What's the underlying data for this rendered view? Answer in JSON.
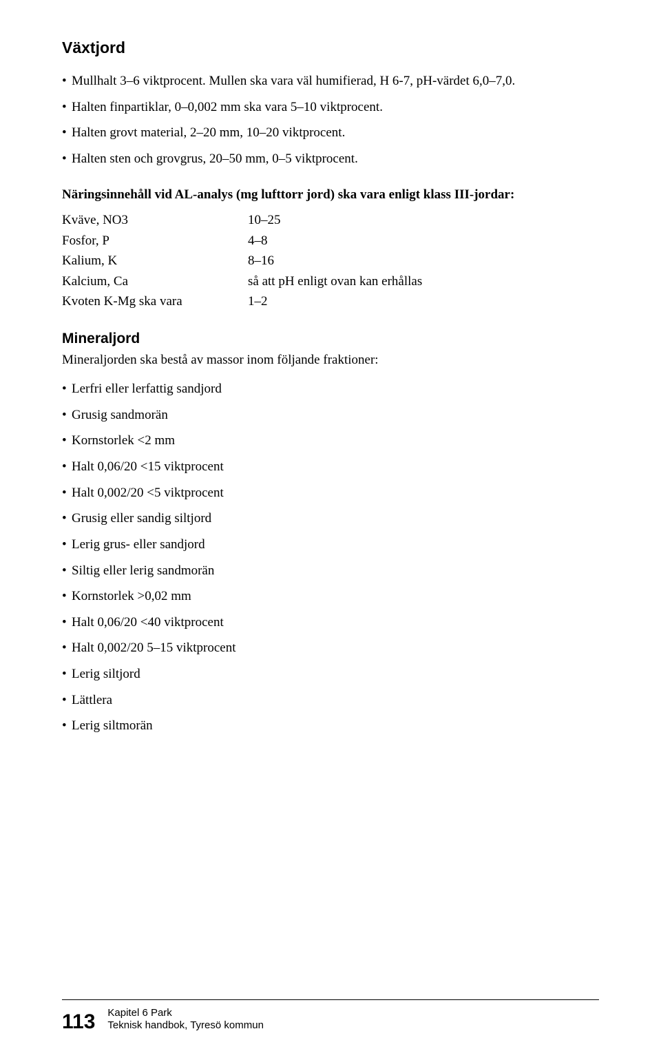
{
  "section1": {
    "heading": "Växtjord",
    "bullets": [
      "Mullhalt 3–6 viktprocent. Mullen ska vara väl humifierad, H 6-7, pH-värdet 6,0–7,0.",
      "Halten finpartiklar, 0–0,002 mm ska vara 5–10 viktprocent.",
      "Halten grovt material, 2–20 mm, 10–20 viktprocent.",
      "Halten sten och grovgrus, 20–50 mm, 0–5 viktprocent."
    ]
  },
  "nutrients": {
    "intro": "Näringsinnehåll vid AL-analys (mg lufttorr jord) ska vara enligt klass III-jordar:",
    "rows": [
      {
        "label": "Kväve, NO3",
        "value": "10–25"
      },
      {
        "label": "Fosfor, P",
        "value": "4–8"
      },
      {
        "label": "Kalium, K",
        "value": "8–16"
      },
      {
        "label": "Kalcium, Ca",
        "value": "så att pH enligt ovan kan erhållas"
      },
      {
        "label": "Kvoten K-Mg ska vara",
        "value": "1–2"
      }
    ]
  },
  "section2": {
    "heading": "Mineraljord",
    "intro": "Mineraljorden ska bestå av massor inom följande fraktioner:",
    "bullets": [
      "Lerfri eller lerfattig sandjord",
      "Grusig sandmorän",
      "Kornstorlek <2 mm",
      "Halt 0,06/20 <15 viktprocent",
      "Halt 0,002/20 <5 viktprocent",
      "Grusig eller sandig siltjord",
      "Lerig grus- eller sandjord",
      "Siltig eller lerig sandmorän",
      "Kornstorlek >0,02 mm",
      "Halt 0,06/20 <40 viktprocent",
      "Halt 0,002/20 5–15 viktprocent",
      "Lerig siltjord",
      "Lättlera",
      "Lerig siltmorän"
    ]
  },
  "footer": {
    "page_number": "113",
    "line1": "Kapitel 6 Park",
    "line2": "Teknisk handbok, Tyresö kommun"
  }
}
